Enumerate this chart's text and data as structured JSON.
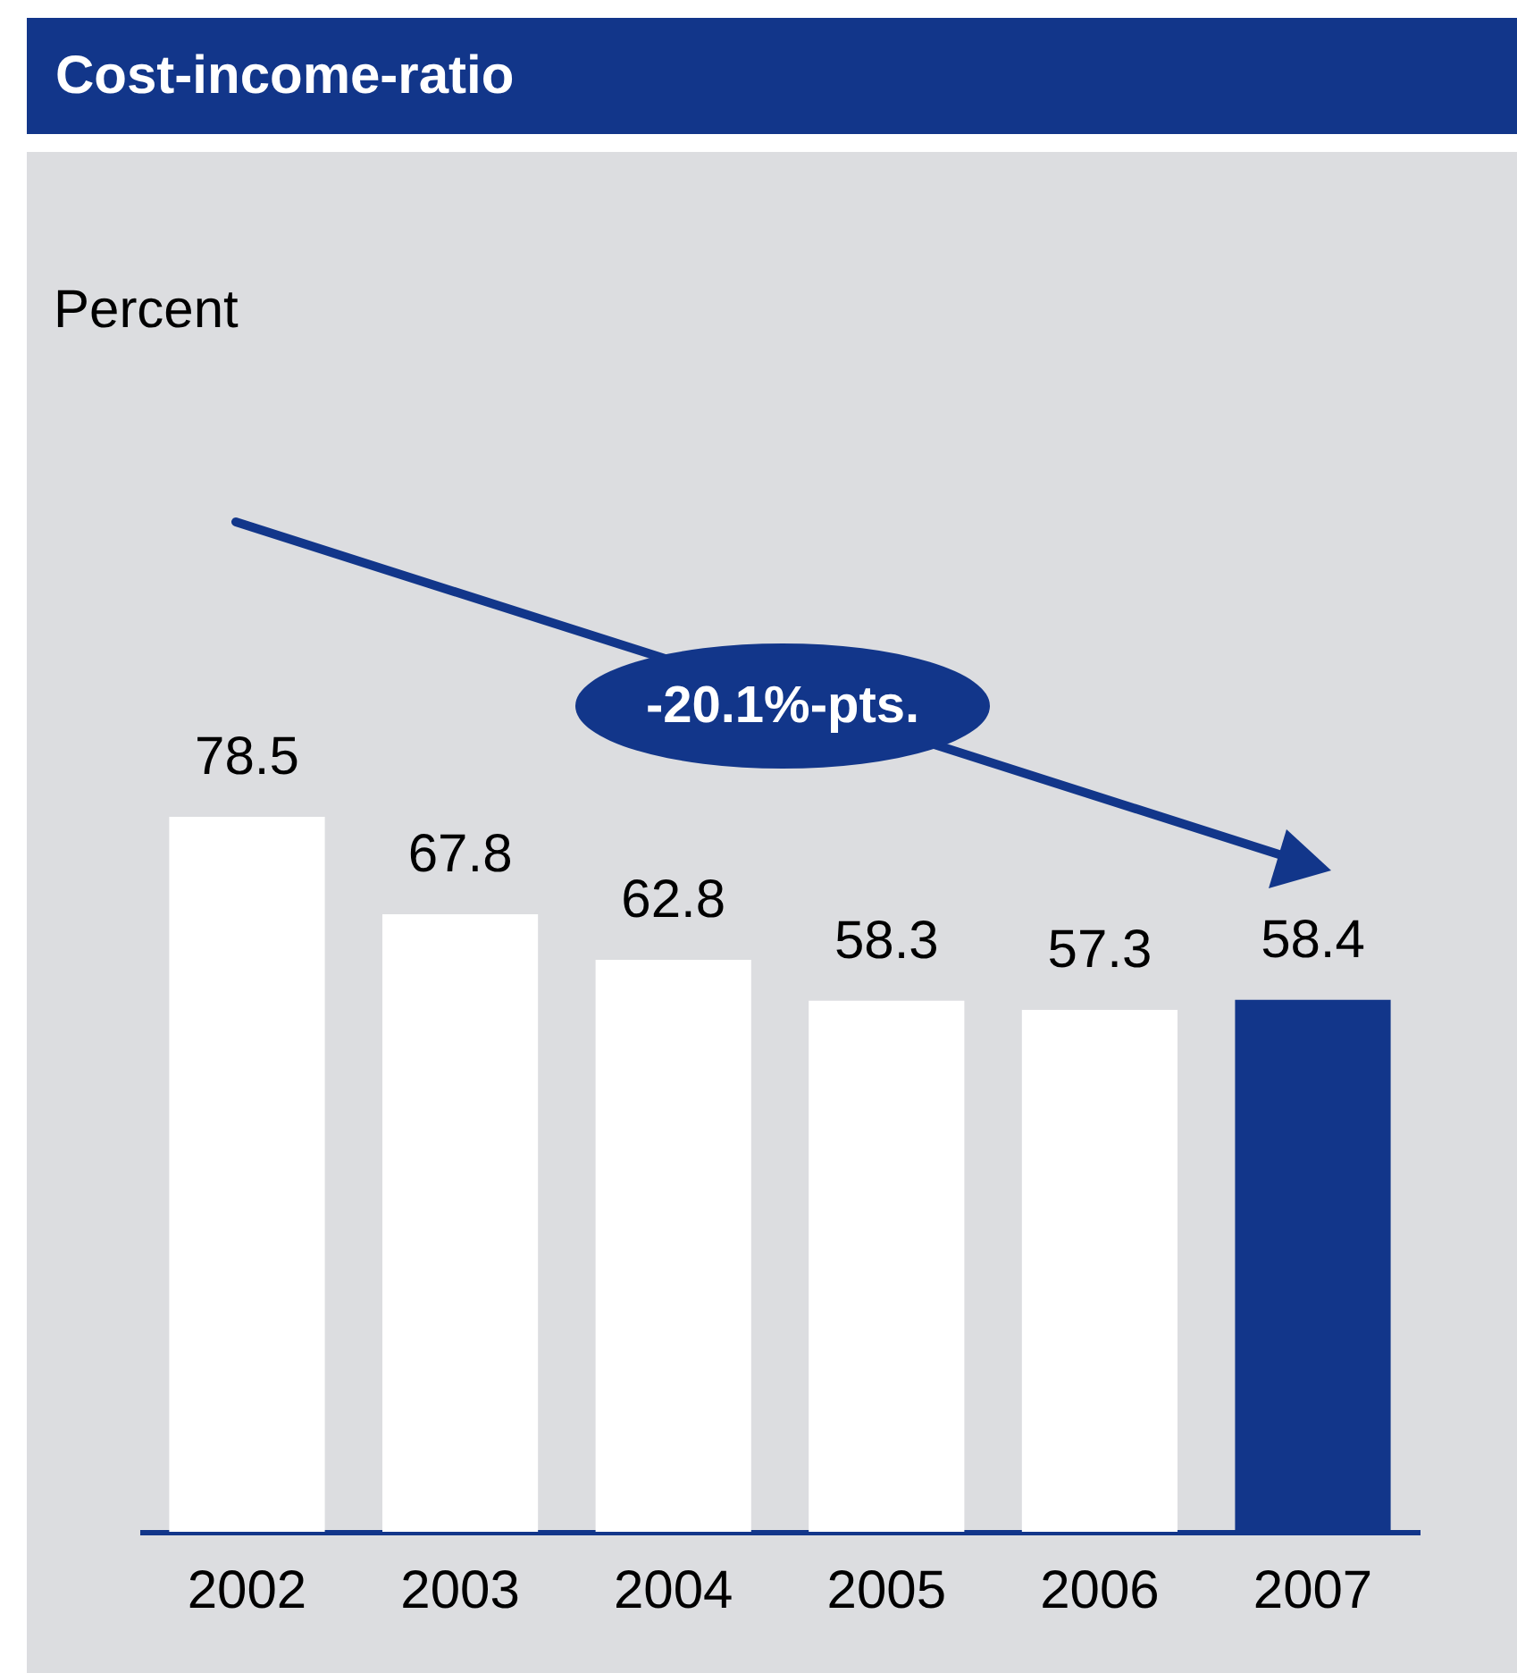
{
  "chart_data": {
    "type": "bar",
    "title": "Cost-income-ratio",
    "categories": [
      "2002",
      "2003",
      "2004",
      "2005",
      "2006",
      "2007"
    ],
    "values": [
      78.5,
      67.8,
      62.8,
      58.3,
      57.3,
      58.4
    ],
    "colors": [
      "#ffffff",
      "#ffffff",
      "#ffffff",
      "#ffffff",
      "#ffffff",
      "#12368a"
    ],
    "data_labels": true,
    "annotations": [
      "Percent",
      "-20.1%-pts."
    ]
  }
}
